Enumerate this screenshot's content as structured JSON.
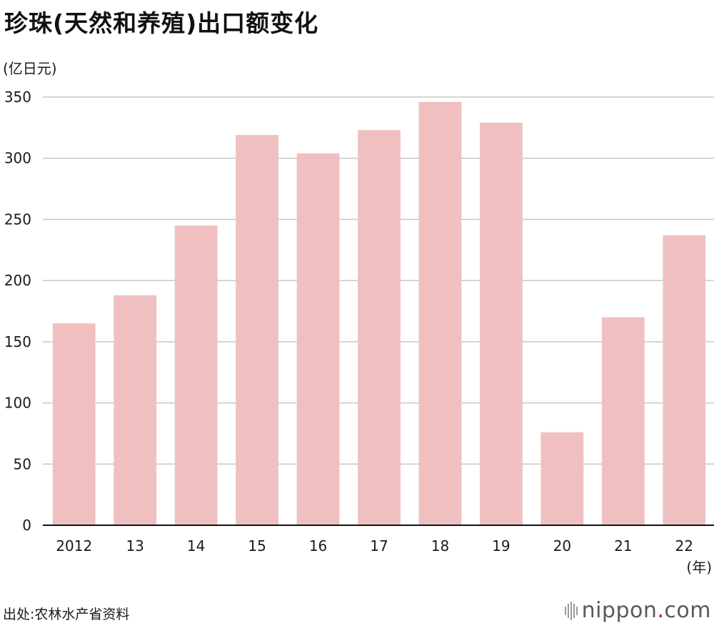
{
  "title": "珍珠(天然和养殖)出口额变化",
  "source": "出处:农林水产省资料",
  "logo": {
    "name": "nippon",
    "dot": ".",
    "suffix": "com",
    "dot_color": "#d0021b"
  },
  "colors": {
    "bar": "#f0c0c0",
    "grid": "#c8c8c8",
    "axis": "#111111"
  },
  "chart_data": {
    "type": "bar",
    "title": "珍珠(天然和养殖)出口额变化",
    "ylabel": "(亿日元)",
    "xlabel": "(年)",
    "categories": [
      "2012",
      "13",
      "14",
      "15",
      "16",
      "17",
      "18",
      "19",
      "20",
      "21",
      "22"
    ],
    "values": [
      165,
      188,
      245,
      319,
      304,
      323,
      346,
      329,
      76,
      170,
      237
    ],
    "ylim": [
      0,
      350
    ],
    "yticks": [
      0,
      50,
      100,
      150,
      200,
      250,
      300,
      350
    ],
    "grid": true,
    "legend": "none"
  }
}
